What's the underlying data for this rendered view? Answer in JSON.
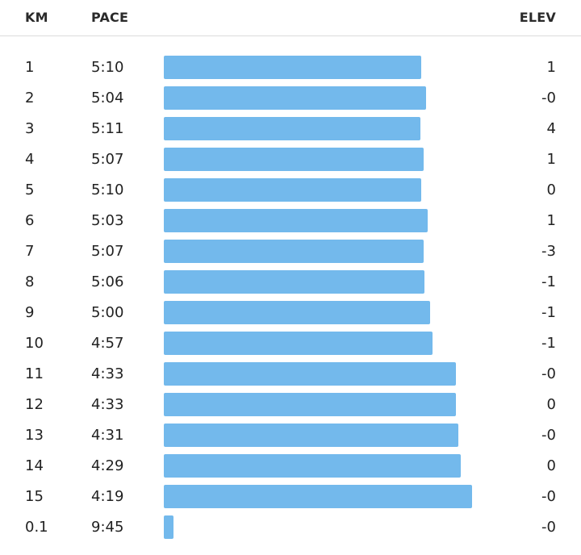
{
  "header": {
    "km": "KM",
    "pace": "PACE",
    "elev": "ELEV"
  },
  "splits": [
    {
      "km": "1",
      "pace": "5:10",
      "elev": "1",
      "pace_seconds": 310
    },
    {
      "km": "2",
      "pace": "5:04",
      "elev": "-0",
      "pace_seconds": 304
    },
    {
      "km": "3",
      "pace": "5:11",
      "elev": "4",
      "pace_seconds": 311
    },
    {
      "km": "4",
      "pace": "5:07",
      "elev": "1",
      "pace_seconds": 307
    },
    {
      "km": "5",
      "pace": "5:10",
      "elev": "0",
      "pace_seconds": 310
    },
    {
      "km": "6",
      "pace": "5:03",
      "elev": "1",
      "pace_seconds": 303
    },
    {
      "km": "7",
      "pace": "5:07",
      "elev": "-3",
      "pace_seconds": 307
    },
    {
      "km": "8",
      "pace": "5:06",
      "elev": "-1",
      "pace_seconds": 306
    },
    {
      "km": "9",
      "pace": "5:00",
      "elev": "-1",
      "pace_seconds": 300
    },
    {
      "km": "10",
      "pace": "4:57",
      "elev": "-1",
      "pace_seconds": 297
    },
    {
      "km": "11",
      "pace": "4:33",
      "elev": "-0",
      "pace_seconds": 273
    },
    {
      "km": "12",
      "pace": "4:33",
      "elev": "0",
      "pace_seconds": 273
    },
    {
      "km": "13",
      "pace": "4:31",
      "elev": "-0",
      "pace_seconds": 271
    },
    {
      "km": "14",
      "pace": "4:29",
      "elev": "0",
      "pace_seconds": 269
    },
    {
      "km": "15",
      "pace": "4:19",
      "elev": "-0",
      "pace_seconds": 259
    },
    {
      "km": "0.1",
      "pace": "9:45",
      "elev": "-0",
      "pace_seconds": 585
    }
  ],
  "colors": {
    "bar": "#73b9ec",
    "divider": "#dcdcdc"
  }
}
